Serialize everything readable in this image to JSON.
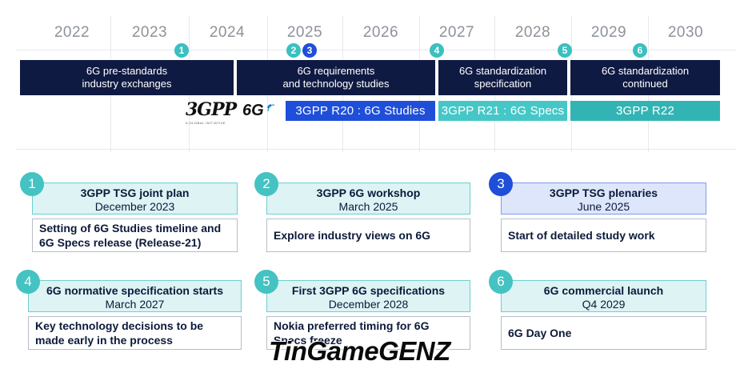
{
  "timeline": {
    "years": [
      "2022",
      "2023",
      "2024",
      "2025",
      "2026",
      "2027",
      "2028",
      "2029",
      "2030"
    ],
    "markers": [
      "1",
      "2",
      "3",
      "4",
      "5",
      "6"
    ],
    "phases": [
      {
        "line1": "6G pre-standards",
        "line2": "industry exchanges"
      },
      {
        "line1": "6G requirements",
        "line2": "and technology studies"
      },
      {
        "line1": "6G standardization",
        "line2": "specification"
      },
      {
        "line1": "6G standardization",
        "line2": "continued"
      }
    ],
    "specs": [
      "3GPP R20 : 6G Studies",
      "3GPP R21 : 6G Specs",
      "3GPP R22"
    ],
    "logos": {
      "threegpp": "3GPP",
      "threegpp_sub": "A GLOBAL INITIATIVE",
      "sixg": "6G"
    },
    "colors": {
      "navy": "#0f1a42",
      "blue": "#1f4fd9",
      "light_teal": "#46c7c7",
      "teal": "#33b4b4"
    }
  },
  "cards": [
    {
      "num": "1",
      "title": "3GPP TSG joint plan",
      "date": "December 2023",
      "body": "Setting of 6G Studies timeline and 6G Specs release (Release-21)"
    },
    {
      "num": "2",
      "title": "3GPP 6G workshop",
      "date": "March 2025",
      "body": "Explore industry views on 6G"
    },
    {
      "num": "3",
      "title": "3GPP TSG plenaries",
      "date": "June 2025",
      "body": "Start of detailed study work"
    },
    {
      "num": "4",
      "title": "6G normative specification starts",
      "date": "March 2027",
      "body": "Key technology decisions to be made early in the process"
    },
    {
      "num": "5",
      "title": "First 3GPP 6G specifications",
      "date": "December 2028",
      "body": "Nokia preferred timing for 6G Specs freeze"
    },
    {
      "num": "6",
      "title": "6G commercial launch",
      "date": "Q4 2029",
      "body": "6G Day One"
    }
  ],
  "watermark": "TinGameGENZ"
}
